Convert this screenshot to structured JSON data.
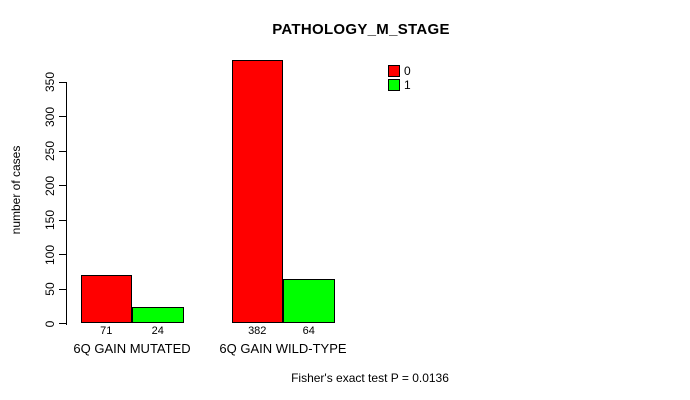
{
  "chart_data": {
    "type": "bar",
    "title": "PATHOLOGY_M_STAGE",
    "ylabel": "number of cases",
    "xlabel": "",
    "categories": [
      "6Q GAIN MUTATED",
      "6Q GAIN WILD-TYPE"
    ],
    "series": [
      {
        "name": "0",
        "color": "#FF0000",
        "values": [
          71,
          382
        ]
      },
      {
        "name": "1",
        "color": "#00FF00",
        "values": [
          24,
          64
        ]
      }
    ],
    "yticks": [
      0,
      50,
      100,
      150,
      200,
      250,
      300,
      350
    ],
    "ylim": [
      0,
      350
    ],
    "grid": false,
    "legend_position": "top-right",
    "legend": [
      {
        "label": "0",
        "color": "#FF0000"
      },
      {
        "label": "1",
        "color": "#00FF00"
      }
    ],
    "annotation": "Fisher's exact test P = 0.0136",
    "bar_border_color": "#000000",
    "background": "#FFFFFF"
  }
}
